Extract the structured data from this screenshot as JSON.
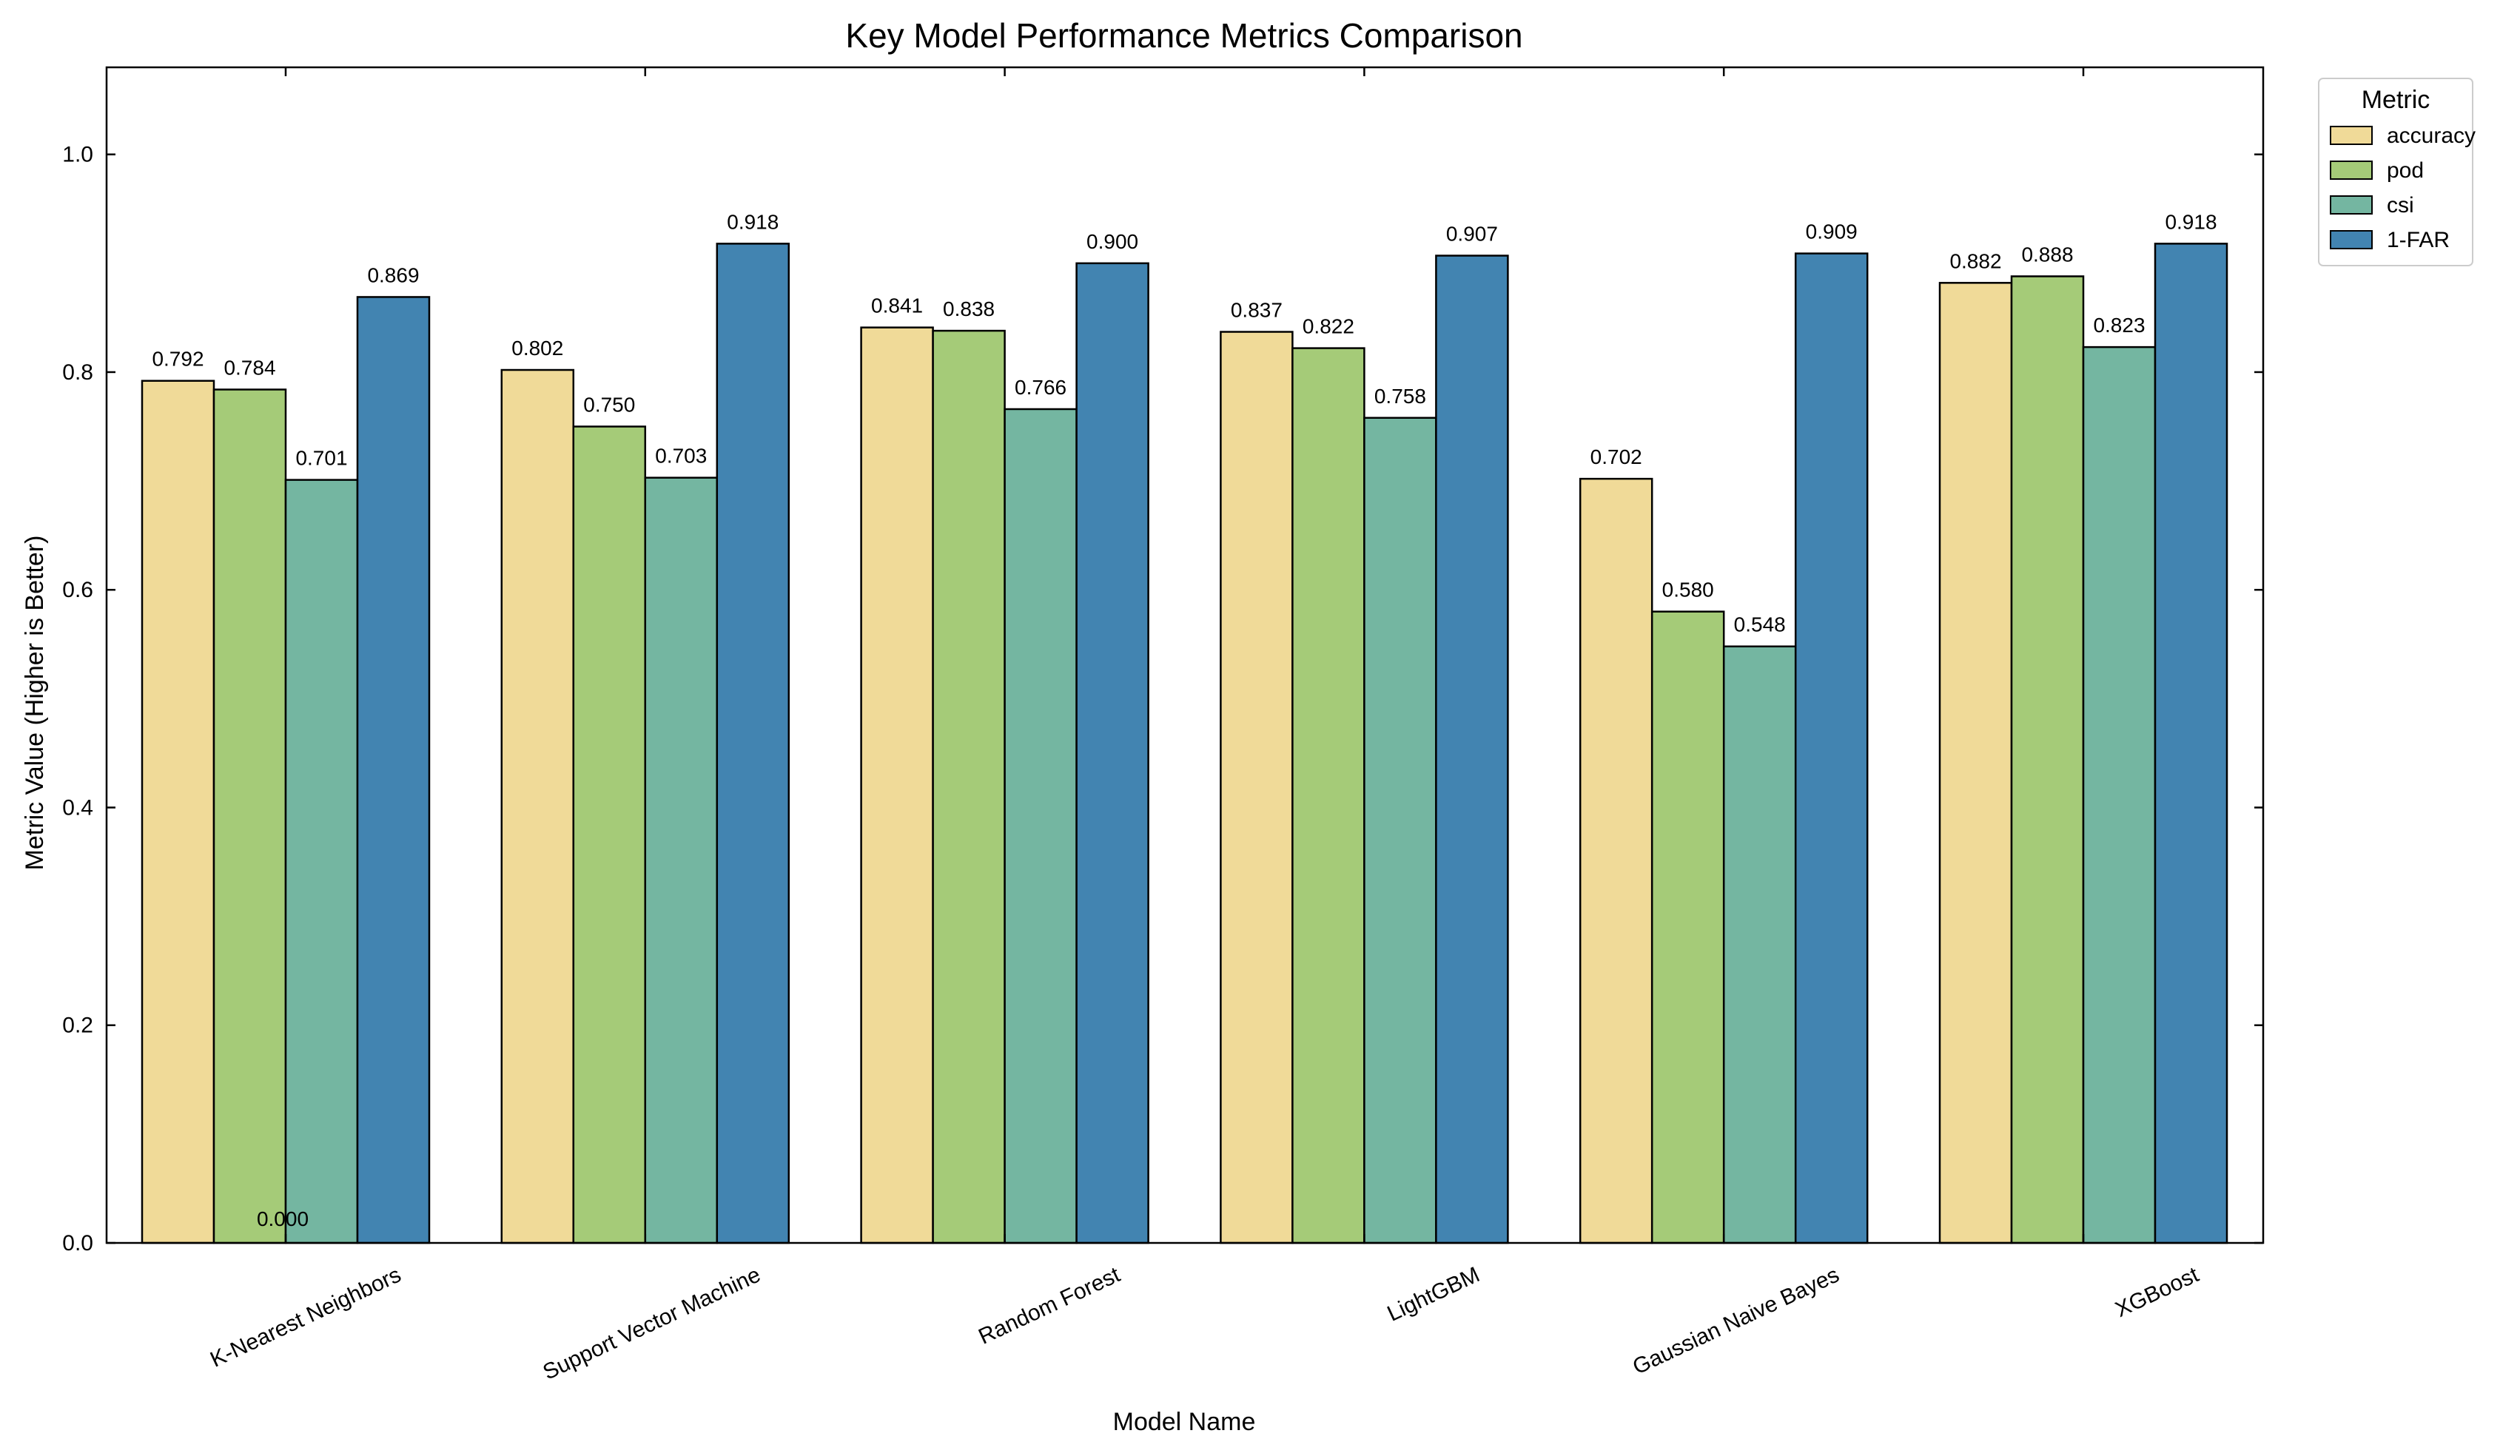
{
  "chart_data": {
    "type": "bar",
    "title": "Key Model Performance Metrics Comparison",
    "xlabel": "Model Name",
    "ylabel": "Metric Value (Higher is Better)",
    "ylim": [
      0,
      1.08
    ],
    "yticks": [
      0.0,
      0.2,
      0.4,
      0.6,
      0.8,
      1.0
    ],
    "ytick_labels": [
      "0.0",
      "0.2",
      "0.4",
      "0.6",
      "0.8",
      "1.0"
    ],
    "categories": [
      "K-Nearest Neighbors",
      "Support Vector Machine",
      "Random Forest",
      "LightGBM",
      "Gaussian Naive Bayes",
      "XGBoost"
    ],
    "legend_title": "Metric",
    "legend_position": "outside top-right",
    "grid": false,
    "series": [
      {
        "name": "accuracy",
        "color": "#f0da98",
        "values": [
          0.792,
          0.802,
          0.841,
          0.837,
          0.702,
          0.882
        ]
      },
      {
        "name": "pod",
        "color": "#a5cb78",
        "values": [
          0.784,
          0.75,
          0.838,
          0.822,
          0.58,
          0.888
        ]
      },
      {
        "name": "csi",
        "color": "#74b6a1",
        "values": [
          0.701,
          0.703,
          0.766,
          0.758,
          0.548,
          0.823
        ]
      },
      {
        "name": "1-FAR",
        "color": "#4284b1",
        "values": [
          0.869,
          0.918,
          0.9,
          0.907,
          0.909,
          0.918
        ]
      }
    ],
    "annotations": [
      {
        "text": "0.000",
        "category": "K-Nearest Neighbors",
        "value": 0.0
      }
    ]
  }
}
